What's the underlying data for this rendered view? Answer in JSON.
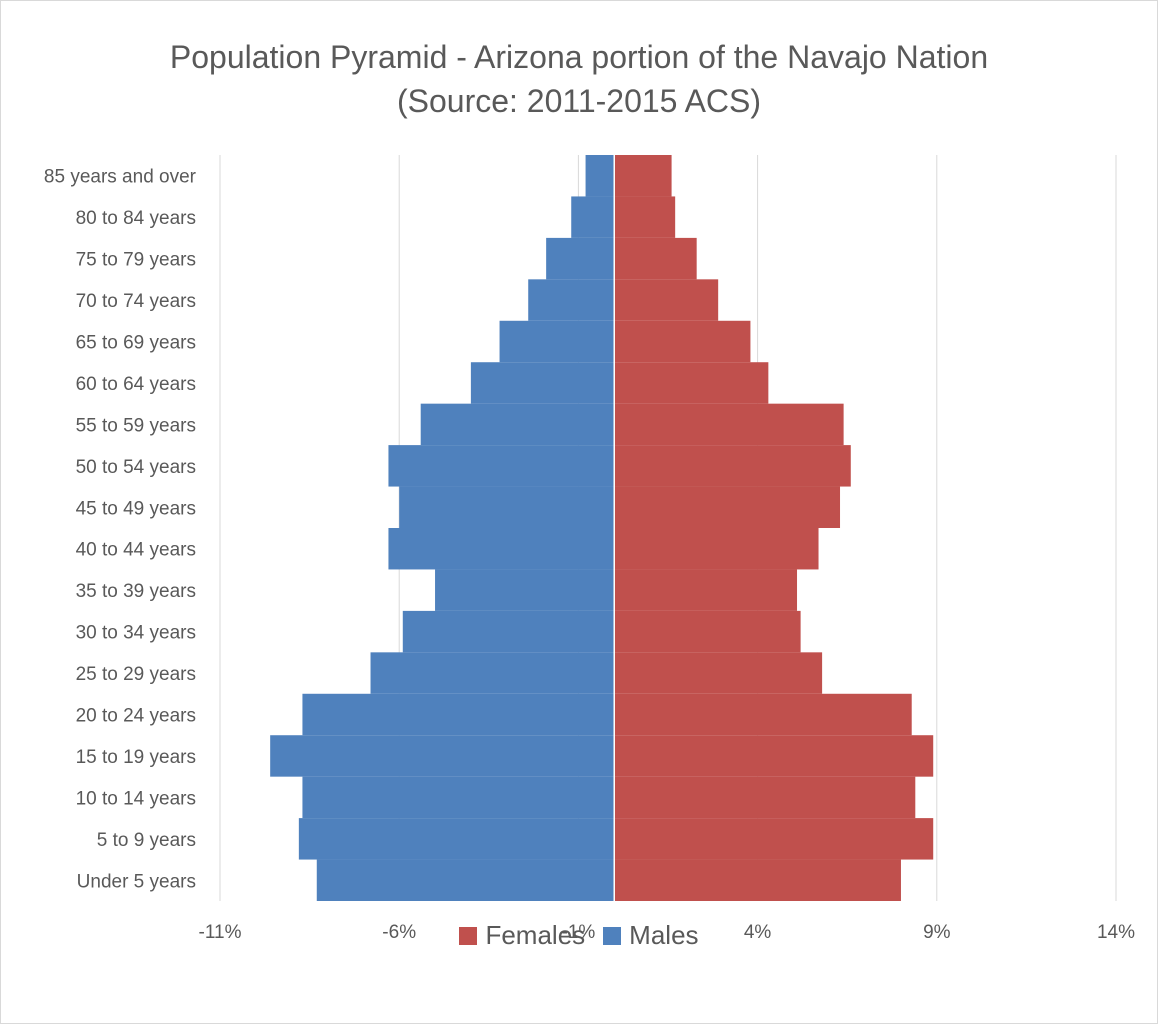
{
  "colors": {
    "females": "#C0504D",
    "males": "#4F81BD",
    "grid": "#d9d9d9",
    "text": "#595959"
  },
  "chart_data": {
    "type": "bar",
    "orientation": "horizontal",
    "stacked": true,
    "title": "Population Pyramid - Arizona portion of the Navajo Nation",
    "subtitle": "(Source: 2011-2015 ACS)",
    "categories": [
      "Under 5 years",
      "5 to 9 years",
      "10 to 14 years",
      "15 to 19 years",
      "20 to 24 years",
      "25 to 29 years",
      "30 to 34 years",
      "35 to 39 years",
      "40 to 44 years",
      "45 to 49 years",
      "50 to 54 years",
      "55 to 59 years",
      "60 to 64 years",
      "65 to 69 years",
      "70 to 74 years",
      "75 to 79 years",
      "80 to 84 years",
      "85 years and over"
    ],
    "series": [
      {
        "name": "Females",
        "values": [
          8.0,
          8.9,
          8.4,
          8.9,
          8.3,
          5.8,
          5.2,
          5.1,
          5.7,
          6.3,
          6.6,
          6.4,
          4.3,
          3.8,
          2.9,
          2.3,
          1.7,
          1.6
        ]
      },
      {
        "name": "Males",
        "values": [
          -8.3,
          -8.8,
          -8.7,
          -9.6,
          -8.7,
          -6.8,
          -5.9,
          -5.0,
          -6.3,
          -6.0,
          -6.3,
          -5.4,
          -4.0,
          -3.2,
          -2.4,
          -1.9,
          -1.2,
          -0.8
        ]
      }
    ],
    "xlim": [
      -11,
      14
    ],
    "xticks": [
      -11,
      -6,
      -1,
      4,
      9,
      14
    ],
    "xtick_labels": [
      "-11%",
      "-6%",
      "-1%",
      "4%",
      "9%",
      "14%"
    ],
    "grid": true,
    "legend": "bottom"
  }
}
